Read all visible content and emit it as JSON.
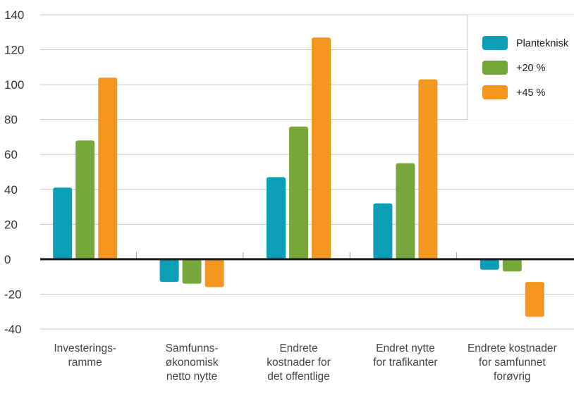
{
  "chart_data": {
    "type": "bar",
    "title": "",
    "xlabel": "",
    "ylabel": "",
    "ylim": [
      -40,
      140
    ],
    "yticks": [
      -40,
      -20,
      0,
      20,
      40,
      60,
      80,
      100,
      120,
      140
    ],
    "grid": true,
    "legend_position": "top-right",
    "categories": [
      [
        "Investerings-",
        "ramme"
      ],
      [
        "Samfunns-",
        "økonomisk",
        "netto nytte"
      ],
      [
        "Endrete",
        "kostnader for",
        "det offentlige"
      ],
      [
        "Endret nytte",
        "for trafikanter"
      ],
      [
        "Endrete kostnader",
        "for samfunnet",
        "forøvrig"
      ]
    ],
    "series": [
      {
        "name": "Planteknisk",
        "color": "#0a9fb6",
        "values": [
          41,
          -13,
          47,
          32,
          -6
        ]
      },
      {
        "name": "+20 %",
        "color": "#77a73a",
        "values": [
          68,
          -14,
          76,
          55,
          -7
        ]
      },
      {
        "name": "+45 %",
        "color": "#f5971f",
        "values": [
          104,
          -16,
          127,
          103,
          [
            -13,
            -33
          ]
        ]
      }
    ]
  }
}
